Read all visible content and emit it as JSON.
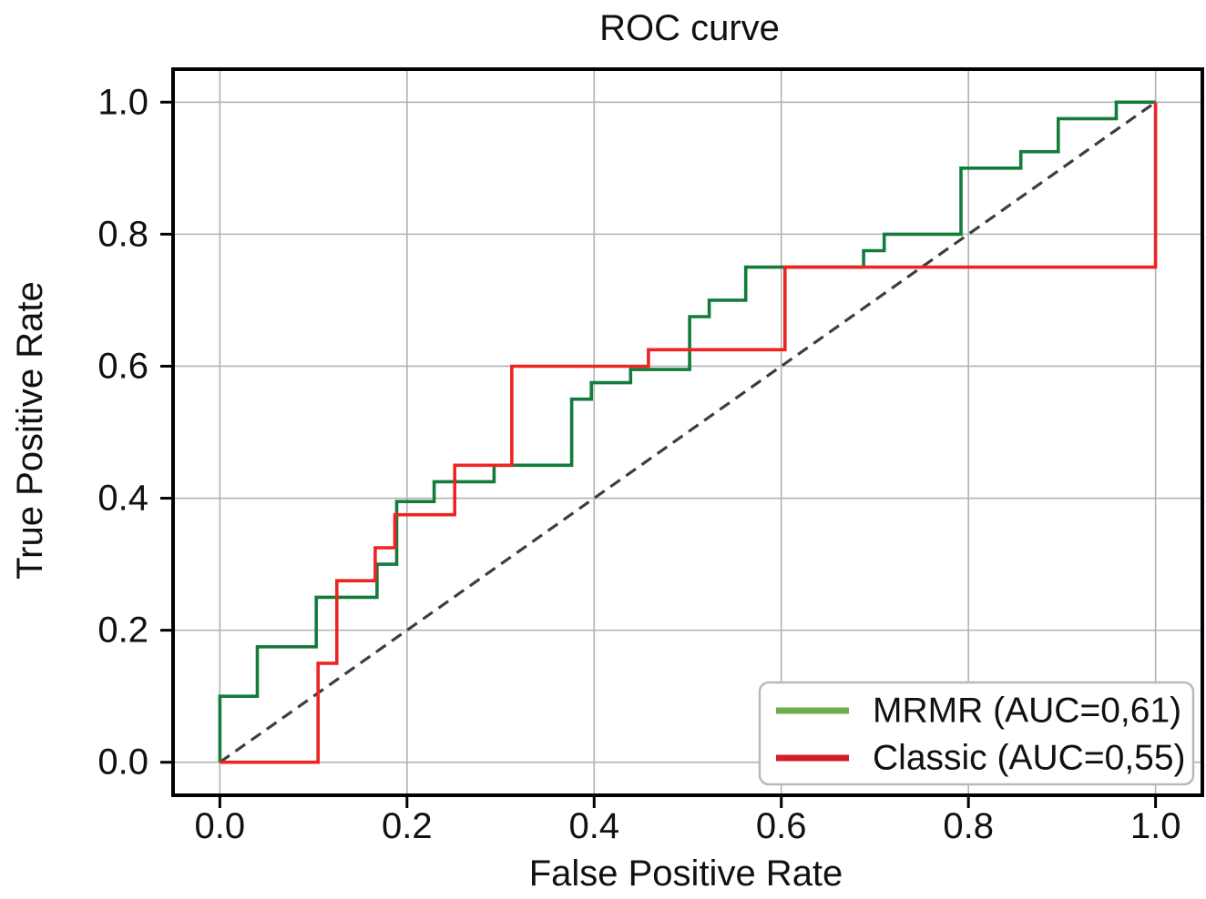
{
  "chart_data": {
    "type": "line",
    "subtype": "roc_step_curves",
    "title": "ROC curve",
    "xlabel": "False Positive Rate",
    "ylabel": "True Positive Rate",
    "xlim": [
      -0.05,
      1.05
    ],
    "ylim": [
      -0.05,
      1.05
    ],
    "x_ticks": [
      0,
      0.2,
      0.4,
      0.6,
      0.8,
      1
    ],
    "x_tick_labels": [
      "0.0",
      "0.2",
      "0.4",
      "0.6",
      "0.8",
      "1.0"
    ],
    "y_ticks": [
      0,
      0.2,
      0.4,
      0.6,
      0.8,
      1
    ],
    "y_tick_labels": [
      "0.0",
      "0.2",
      "0.4",
      "0.6",
      "0.8",
      "1.0"
    ],
    "grid": true,
    "legend_position": "lower right",
    "style": {
      "background": "#ffffff",
      "grid_color": "#b2b2b2",
      "spine_color": "#000000",
      "text_color": "#111111",
      "legend_border_color": "#b9b9b9"
    },
    "reference_line": {
      "name": "chance-diagonal",
      "points": [
        [
          0,
          0
        ],
        [
          1,
          1
        ]
      ],
      "style": "dashed",
      "color": "#3e3e3e"
    },
    "series": [
      {
        "name": "MRMR (AUC=0,61)",
        "auc_label": "0,61",
        "color": "#137c3a",
        "legend_swatch_color": "#6fad4c",
        "points": [
          [
            0,
            0
          ],
          [
            0,
            0.1
          ],
          [
            0.04,
            0.1
          ],
          [
            0.04,
            0.175
          ],
          [
            0.103,
            0.175
          ],
          [
            0.103,
            0.25
          ],
          [
            0.168,
            0.25
          ],
          [
            0.168,
            0.3
          ],
          [
            0.189,
            0.3
          ],
          [
            0.189,
            0.395
          ],
          [
            0.229,
            0.395
          ],
          [
            0.229,
            0.425
          ],
          [
            0.293,
            0.425
          ],
          [
            0.293,
            0.45
          ],
          [
            0.376,
            0.45
          ],
          [
            0.376,
            0.55
          ],
          [
            0.397,
            0.55
          ],
          [
            0.397,
            0.575
          ],
          [
            0.439,
            0.575
          ],
          [
            0.439,
            0.595
          ],
          [
            0.502,
            0.595
          ],
          [
            0.502,
            0.675
          ],
          [
            0.523,
            0.675
          ],
          [
            0.523,
            0.7
          ],
          [
            0.562,
            0.7
          ],
          [
            0.562,
            0.75
          ],
          [
            0.688,
            0.75
          ],
          [
            0.688,
            0.775
          ],
          [
            0.71,
            0.775
          ],
          [
            0.71,
            0.8
          ],
          [
            0.792,
            0.8
          ],
          [
            0.792,
            0.9
          ],
          [
            0.856,
            0.9
          ],
          [
            0.856,
            0.925
          ],
          [
            0.896,
            0.925
          ],
          [
            0.896,
            0.975
          ],
          [
            0.958,
            0.975
          ],
          [
            0.958,
            1
          ],
          [
            1,
            1
          ]
        ]
      },
      {
        "name": "Classic (AUC=0,55)",
        "auc_label": "0,55",
        "color": "#ee2423",
        "legend_swatch_color": "#d02025",
        "points": [
          [
            0,
            0
          ],
          [
            0.105,
            0
          ],
          [
            0.105,
            0.15
          ],
          [
            0.125,
            0.15
          ],
          [
            0.125,
            0.275
          ],
          [
            0.166,
            0.275
          ],
          [
            0.166,
            0.325
          ],
          [
            0.187,
            0.325
          ],
          [
            0.187,
            0.375
          ],
          [
            0.251,
            0.375
          ],
          [
            0.251,
            0.45
          ],
          [
            0.312,
            0.45
          ],
          [
            0.312,
            0.6
          ],
          [
            0.458,
            0.6
          ],
          [
            0.458,
            0.625
          ],
          [
            0.604,
            0.625
          ],
          [
            0.604,
            0.75
          ],
          [
            1,
            0.75
          ],
          [
            1,
            1
          ]
        ]
      }
    ]
  }
}
